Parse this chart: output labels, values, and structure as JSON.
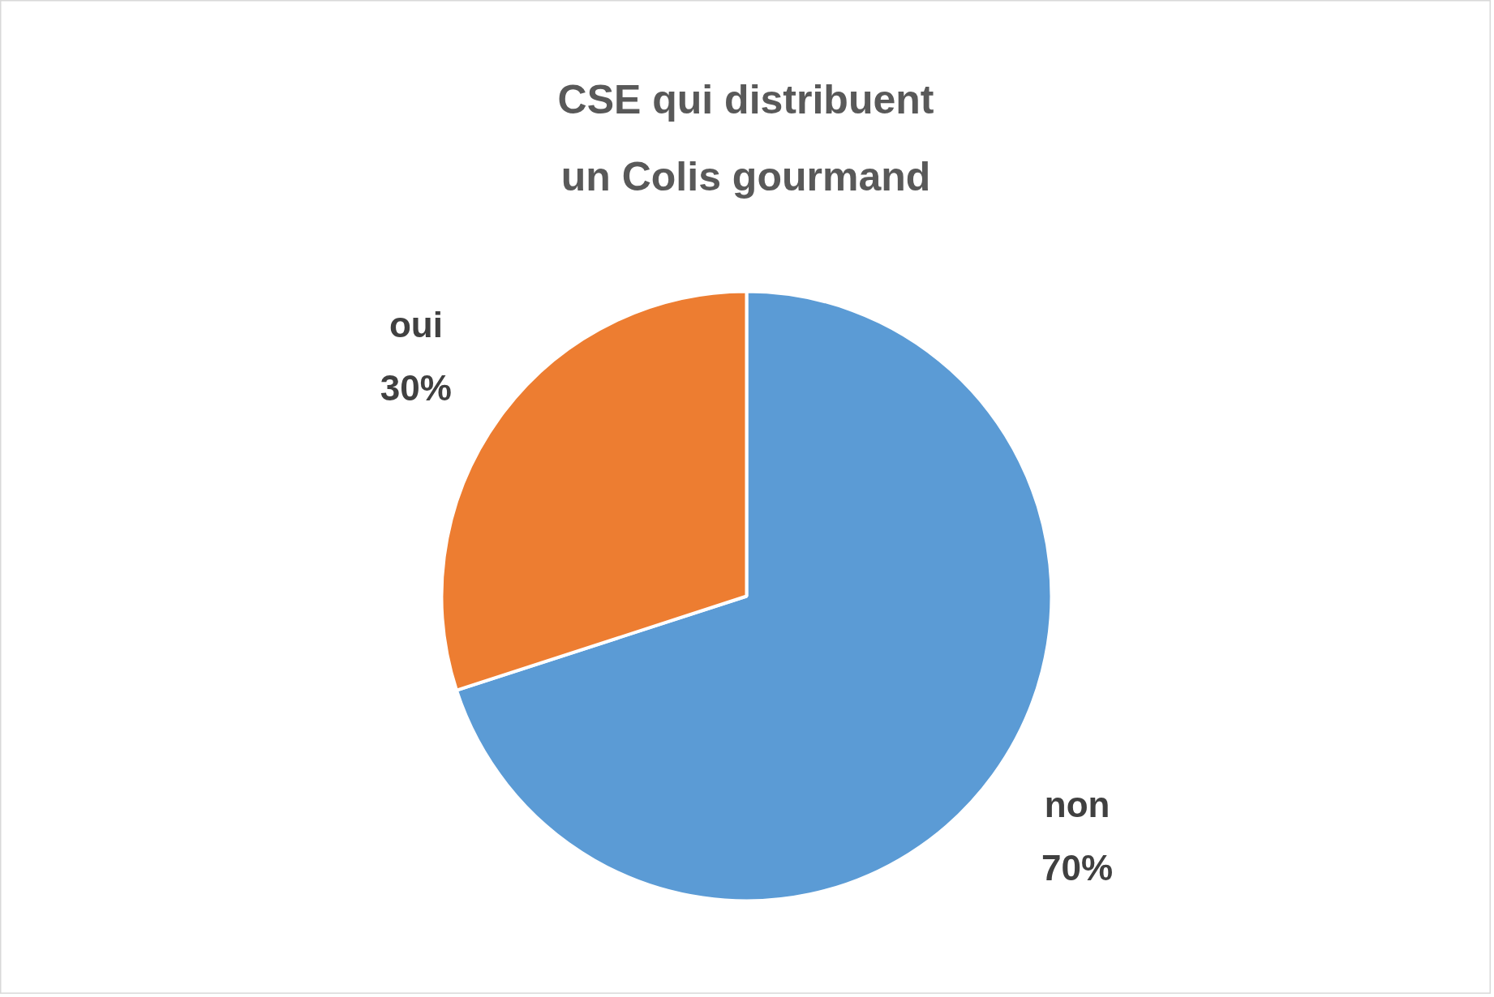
{
  "chart_data": {
    "type": "pie",
    "title": "CSE qui distribuent\nun Colis gourmand",
    "categories": [
      "non",
      "oui"
    ],
    "values": [
      70,
      30
    ],
    "colors": [
      "#5b9bd5",
      "#ed7d31"
    ],
    "value_labels": [
      "70%",
      "30%"
    ]
  }
}
